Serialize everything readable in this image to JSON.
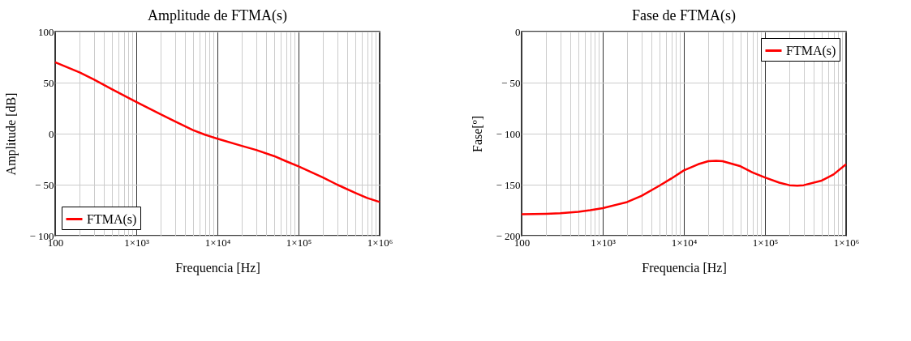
{
  "chart_data": [
    {
      "type": "line",
      "title": "Amplitude de FTMA(s)",
      "xlabel": "Frequencia [Hz]",
      "ylabel": "Amplitude [dB]",
      "log": "x",
      "grid": true,
      "legend": "bottom left",
      "line_style": "solid",
      "marker": "none",
      "x": [
        100,
        200,
        300,
        500,
        1000,
        2000,
        3000,
        5000,
        7000,
        10000,
        20000,
        30000,
        50000,
        70000,
        100000,
        200000,
        300000,
        500000,
        700000,
        1000000
      ],
      "series": [
        {
          "name": "FTMA(s)",
          "color": "#ff0000",
          "values": [
            70,
            60,
            53,
            43.5,
            31,
            19,
            12,
            3.5,
            -1,
            -5,
            -12,
            -16,
            -22,
            -27,
            -32,
            -43,
            -50,
            -58,
            -63,
            -67
          ]
        }
      ],
      "xlim": [
        100,
        1000000
      ],
      "ylim": [
        -100,
        100
      ],
      "xticks": [
        100,
        {
          "value": 200,
          "label": null
        },
        {
          "value": 300,
          "label": null
        },
        {
          "value": 400,
          "label": null
        },
        {
          "value": 500,
          "label": null
        },
        {
          "value": 600,
          "label": null
        },
        {
          "value": 700,
          "label": null
        },
        {
          "value": 800,
          "label": null
        },
        {
          "value": 900,
          "label": null
        },
        {
          "value": 1000,
          "label": "1×10³"
        },
        {
          "value": 2000,
          "label": null
        },
        {
          "value": 3000,
          "label": null
        },
        {
          "value": 4000,
          "label": null
        },
        {
          "value": 5000,
          "label": null
        },
        {
          "value": 6000,
          "label": null
        },
        {
          "value": 7000,
          "label": null
        },
        {
          "value": 8000,
          "label": null
        },
        {
          "value": 9000,
          "label": null
        },
        {
          "value": 10000,
          "label": "1×10⁴"
        },
        {
          "value": 20000,
          "label": null
        },
        {
          "value": 30000,
          "label": null
        },
        {
          "value": 40000,
          "label": null
        },
        {
          "value": 50000,
          "label": null
        },
        {
          "value": 60000,
          "label": null
        },
        {
          "value": 70000,
          "label": null
        },
        {
          "value": 80000,
          "label": null
        },
        {
          "value": 90000,
          "label": null
        },
        {
          "value": 100000,
          "label": "1×10⁵"
        },
        {
          "value": 200000,
          "label": null
        },
        {
          "value": 300000,
          "label": null
        },
        {
          "value": 400000,
          "label": null
        },
        {
          "value": 500000,
          "label": null
        },
        {
          "value": 600000,
          "label": null
        },
        {
          "value": 700000,
          "label": null
        },
        {
          "value": 800000,
          "label": null
        },
        {
          "value": 900000,
          "label": null
        },
        {
          "value": 1000000,
          "label": "1×10⁶"
        }
      ],
      "yticks": [
        {
          "value": -100,
          "label": "− 100"
        },
        {
          "value": -50,
          "label": "− 50"
        },
        0,
        50,
        100
      ]
    },
    {
      "type": "line",
      "title": "Fase de FTMA(s)",
      "xlabel": "Frequencia [Hz]",
      "ylabel": "Fase[º]",
      "log": "x",
      "grid": true,
      "legend": "top right",
      "line_style": "solid",
      "marker": "none",
      "x": [
        100,
        200,
        300,
        500,
        700,
        1000,
        2000,
        3000,
        5000,
        7000,
        10000,
        15000,
        20000,
        25000,
        30000,
        50000,
        70000,
        100000,
        150000,
        200000,
        250000,
        300000,
        500000,
        700000,
        1000000
      ],
      "series": [
        {
          "name": "FTMA(s)",
          "color": "#ff0000",
          "values": [
            -179,
            -178.5,
            -178,
            -176.5,
            -175,
            -173,
            -167,
            -161,
            -151,
            -144,
            -136,
            -130,
            -127,
            -126.5,
            -127,
            -132,
            -138,
            -143,
            -148,
            -150.5,
            -151,
            -150.5,
            -146,
            -140,
            -130
          ]
        }
      ],
      "xlim": [
        100,
        1000000
      ],
      "ylim": [
        -200,
        0
      ],
      "xticks": [
        100,
        {
          "value": 200,
          "label": null
        },
        {
          "value": 300,
          "label": null
        },
        {
          "value": 400,
          "label": null
        },
        {
          "value": 500,
          "label": null
        },
        {
          "value": 600,
          "label": null
        },
        {
          "value": 700,
          "label": null
        },
        {
          "value": 800,
          "label": null
        },
        {
          "value": 900,
          "label": null
        },
        {
          "value": 1000,
          "label": "1×10³"
        },
        {
          "value": 2000,
          "label": null
        },
        {
          "value": 3000,
          "label": null
        },
        {
          "value": 4000,
          "label": null
        },
        {
          "value": 5000,
          "label": null
        },
        {
          "value": 6000,
          "label": null
        },
        {
          "value": 7000,
          "label": null
        },
        {
          "value": 8000,
          "label": null
        },
        {
          "value": 9000,
          "label": null
        },
        {
          "value": 10000,
          "label": "1×10⁴"
        },
        {
          "value": 20000,
          "label": null
        },
        {
          "value": 30000,
          "label": null
        },
        {
          "value": 40000,
          "label": null
        },
        {
          "value": 50000,
          "label": null
        },
        {
          "value": 60000,
          "label": null
        },
        {
          "value": 70000,
          "label": null
        },
        {
          "value": 80000,
          "label": null
        },
        {
          "value": 90000,
          "label": null
        },
        {
          "value": 100000,
          "label": "1×10⁵"
        },
        {
          "value": 200000,
          "label": null
        },
        {
          "value": 300000,
          "label": null
        },
        {
          "value": 400000,
          "label": null
        },
        {
          "value": 500000,
          "label": null
        },
        {
          "value": 600000,
          "label": null
        },
        {
          "value": 700000,
          "label": null
        },
        {
          "value": 800000,
          "label": null
        },
        {
          "value": 900000,
          "label": null
        },
        {
          "value": 1000000,
          "label": "1×10⁶"
        }
      ],
      "yticks": [
        {
          "value": -200,
          "label": "− 200"
        },
        {
          "value": -150,
          "label": "− 150"
        },
        {
          "value": -100,
          "label": "− 100"
        },
        {
          "value": -50,
          "label": "− 50"
        },
        0
      ]
    }
  ]
}
